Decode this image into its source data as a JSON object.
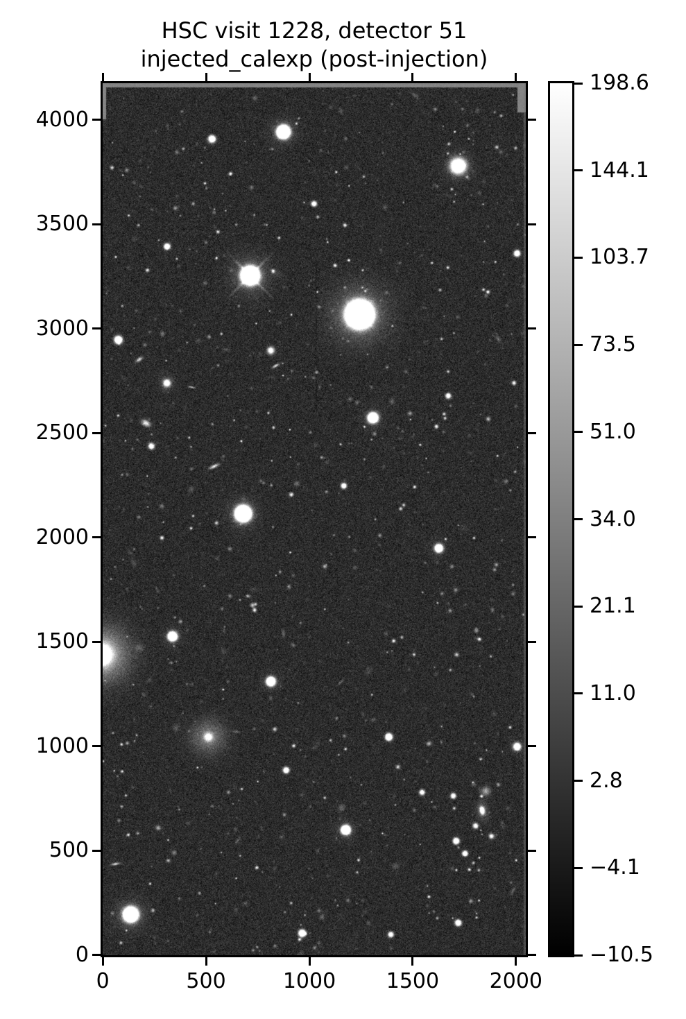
{
  "chart_data": {
    "type": "heatmap",
    "title_line1": "HSC visit 1228, detector 51",
    "title_line2": "injected_calexp (post-injection)",
    "xlabel": "",
    "ylabel": "",
    "xlim": [
      -0.5,
      2047.5
    ],
    "ylim": [
      -0.5,
      4175.5
    ],
    "grid": false,
    "x_ticks": [
      0,
      500,
      1000,
      1500,
      2000
    ],
    "x_tick_labels": [
      "0",
      "500",
      "1000",
      "1500",
      "2000"
    ],
    "y_ticks": [
      0,
      500,
      1000,
      1500,
      2000,
      2500,
      3000,
      3500,
      4000
    ],
    "y_tick_labels": [
      "0",
      "500",
      "1000",
      "1500",
      "2000",
      "2500",
      "3000",
      "3500",
      "4000"
    ],
    "colorbar": {
      "position": "right",
      "tick_labels": [
        "198.6",
        "144.1",
        "103.7",
        "73.5",
        "51.0",
        "34.0",
        "21.1",
        "11.0",
        "2.8",
        "−4.1",
        "−10.5"
      ],
      "top_color": "#ffffff",
      "bottom_color": "#000000"
    },
    "colors": {
      "text": "#000000",
      "spine": "#000000",
      "background": "#ffffff",
      "edge_gray": "#848484"
    },
    "image": {
      "seed": 1228,
      "background_mean": 44,
      "background_sigma": 15,
      "faint_star_count": 900,
      "faint_galaxy_count": 45,
      "edges": {
        "top_height": 6,
        "left_width": 5,
        "left_height": 52,
        "right_width": 3,
        "top_right_width": 12,
        "top_right_height": 42
      },
      "defect_column": {
        "x": 1030,
        "y_min": 2600,
        "y_max": 3300,
        "depth": 13
      },
      "sources": [
        {
          "x": 1242,
          "y": 3070,
          "a": 12,
          "s": 30,
          "ha": 0.3,
          "hs": 90,
          "spikes": 110
        },
        {
          "x": 712,
          "y": 3256,
          "a": 8,
          "s": 21,
          "ha": 0.22,
          "hs": 62,
          "spikes": 160
        },
        {
          "x": 873,
          "y": 3944,
          "a": 6,
          "s": 16,
          "ha": 0.16,
          "hs": 42
        },
        {
          "x": 1719,
          "y": 3781,
          "a": 2.2,
          "s": 22,
          "ha": 0.12,
          "hs": 45
        },
        {
          "x": 678,
          "y": 2116,
          "a": 7,
          "s": 19,
          "ha": 0.18,
          "hs": 48
        },
        {
          "x": 510,
          "y": 1046,
          "a": 1.0,
          "s": 13,
          "ha": 0.3,
          "hs": 55
        },
        {
          "x": -8,
          "y": 1440,
          "a": 1.5,
          "s": 30,
          "ha": 0.55,
          "hs": 85
        },
        {
          "x": 134,
          "y": 196,
          "a": 6,
          "s": 18,
          "ha": 0.2,
          "hs": 48
        },
        {
          "x": 336,
          "y": 1528,
          "a": 4,
          "s": 12,
          "ha": 0.12,
          "hs": 30
        },
        {
          "x": 812,
          "y": 1312,
          "a": 3.5,
          "s": 12,
          "ha": 0.1,
          "hs": 30
        },
        {
          "x": 1175,
          "y": 601,
          "a": 4,
          "s": 12,
          "ha": 0.12,
          "hs": 32
        },
        {
          "x": 1306,
          "y": 2575,
          "a": 4.5,
          "s": 13,
          "ha": 0.12,
          "hs": 35
        },
        {
          "x": 1625,
          "y": 1950,
          "a": 3,
          "s": 11,
          "ha": 0.1,
          "hs": 28
        },
        {
          "x": 1835,
          "y": 694,
          "a": 1.8,
          "s": 11,
          "q": 0.6,
          "rot": 80,
          "ha": 0.25,
          "hs": 30
        },
        {
          "x": 1803,
          "y": 621,
          "a": 1.2,
          "s": 8
        },
        {
          "x": 1880,
          "y": 571,
          "a": 1.0,
          "s": 8
        },
        {
          "x": 1853,
          "y": 787,
          "a": 0.5,
          "s": 14
        },
        {
          "x": 2004,
          "y": 1000,
          "a": 2.5,
          "s": 10,
          "ha": 0.08,
          "hs": 25
        },
        {
          "x": 1383,
          "y": 1046,
          "a": 2.5,
          "s": 10
        },
        {
          "x": 527,
          "y": 3910,
          "a": 2.5,
          "s": 10
        },
        {
          "x": 310,
          "y": 3395,
          "a": 2,
          "s": 9
        },
        {
          "x": 1165,
          "y": 2249,
          "a": 1.8,
          "s": 8
        },
        {
          "x": 537,
          "y": 2342,
          "a": 0.75,
          "s": 16,
          "q": 0.32,
          "rot": -25
        },
        {
          "x": 60,
          "y": 438,
          "a": 0.7,
          "s": 13,
          "q": 0.3,
          "rot": -10
        },
        {
          "x": 74,
          "y": 2948,
          "a": 2.6,
          "s": 11
        },
        {
          "x": 309,
          "y": 2741,
          "a": 1.6,
          "s": 10,
          "ha": 0.15,
          "hs": 26
        },
        {
          "x": 208,
          "y": 2549,
          "a": 0.8,
          "s": 15,
          "q": 0.6,
          "rot": 30
        },
        {
          "x": 175,
          "y": 2854,
          "a": 0.7,
          "s": 12,
          "q": 0.45,
          "rot": -35
        },
        {
          "x": 812,
          "y": 2897,
          "a": 1.2,
          "s": 11
        },
        {
          "x": 836,
          "y": 2824,
          "a": 0.7,
          "s": 12,
          "q": 0.35,
          "rot": -30
        },
        {
          "x": 430,
          "y": 2721,
          "a": 0.6,
          "s": 10,
          "q": 0.3,
          "rot": 10
        },
        {
          "x": 234,
          "y": 2439,
          "a": 1.5,
          "s": 9
        },
        {
          "x": 2004,
          "y": 3362,
          "a": 2,
          "s": 9
        },
        {
          "x": 963,
          "y": 106,
          "a": 2.6,
          "s": 10
        },
        {
          "x": 1719,
          "y": 156,
          "a": 2,
          "s": 9
        },
        {
          "x": 1393,
          "y": 100,
          "a": 1.6,
          "s": 8
        },
        {
          "x": 886,
          "y": 887,
          "a": 1.8,
          "s": 9
        },
        {
          "x": 1544,
          "y": 781,
          "a": 1.5,
          "s": 8
        },
        {
          "x": 1695,
          "y": 764,
          "a": 1.5,
          "s": 8
        },
        {
          "x": 1709,
          "y": 548,
          "a": 2.2,
          "s": 9
        },
        {
          "x": 1752,
          "y": 488,
          "a": 1.8,
          "s": 8
        },
        {
          "x": 1021,
          "y": 3600,
          "a": 1.6,
          "s": 8
        },
        {
          "x": 1671,
          "y": 2680,
          "a": 1.5,
          "s": 8
        }
      ]
    }
  }
}
